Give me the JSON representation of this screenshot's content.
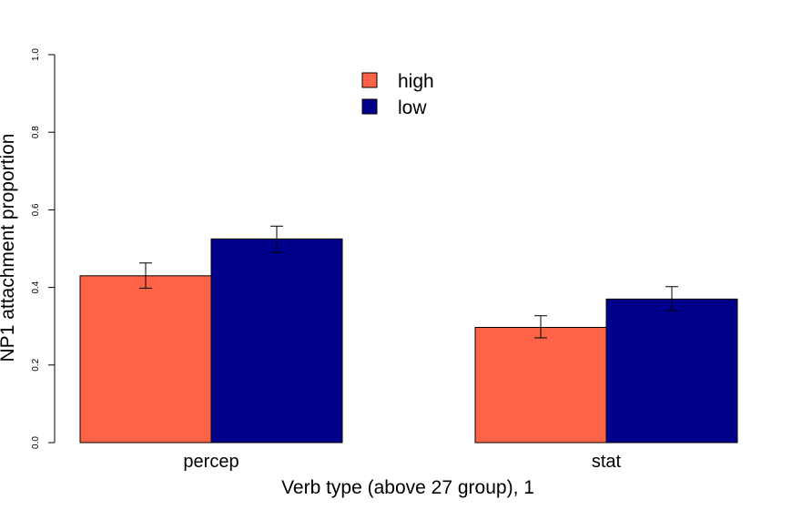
{
  "chart_data": {
    "type": "bar",
    "title": "",
    "xlabel": "Verb type (above 27 group), 1",
    "ylabel": "NP1 attachment proportion",
    "ylim": [
      0,
      1
    ],
    "yticks": [
      0.0,
      0.2,
      0.4,
      0.6,
      0.8,
      1.0
    ],
    "ytick_labels": [
      "0.0",
      "0.2",
      "0.4",
      "0.6",
      "0.8",
      "1.0"
    ],
    "categories": [
      "percep",
      "stat"
    ],
    "series": [
      {
        "name": "high",
        "color": "#FF6347",
        "values": [
          0.43,
          0.297
        ],
        "err_low": [
          0.398,
          0.27
        ],
        "err_high": [
          0.463,
          0.327
        ]
      },
      {
        "name": "low",
        "color": "#00008B",
        "values": [
          0.525,
          0.37
        ],
        "err_low": [
          0.49,
          0.34
        ],
        "err_high": [
          0.558,
          0.402
        ]
      }
    ],
    "legend": {
      "position": "top-center",
      "labels": [
        "high",
        "low"
      ]
    },
    "grid": false
  }
}
